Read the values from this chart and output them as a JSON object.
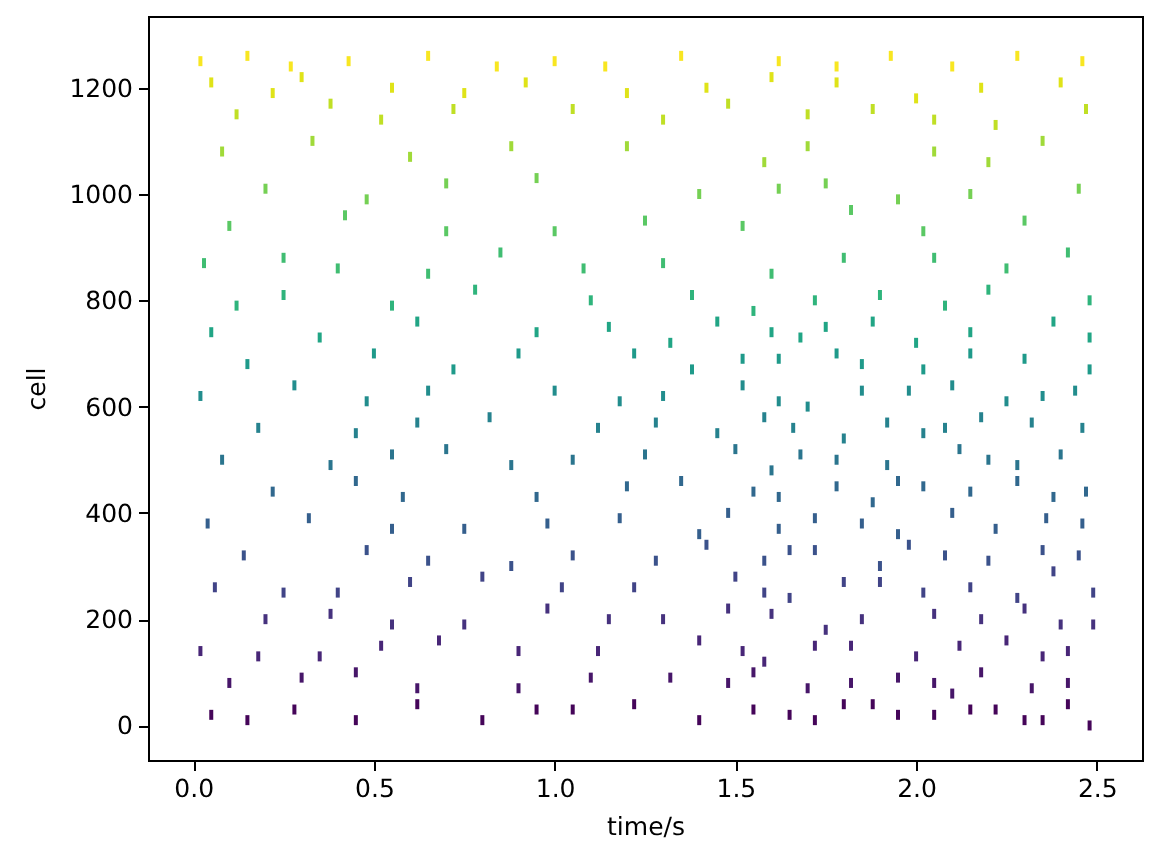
{
  "chart_data": {
    "type": "scatter",
    "xlabel": "time/s",
    "ylabel": "cell",
    "xlim": [
      -0.125,
      2.625
    ],
    "ylim": [
      -65,
      1335
    ],
    "xticks": [
      {
        "value": 0,
        "label": "0.0"
      },
      0.5,
      {
        "value": 1,
        "label": "1.0"
      },
      1.5,
      {
        "value": 2,
        "label": "2.0"
      },
      2.5
    ],
    "yticks": [
      0,
      200,
      400,
      600,
      800,
      1000,
      1200
    ],
    "series": [
      {
        "color": "#f8e621",
        "x": [
          0.02,
          0.15,
          0.27,
          0.43,
          0.65,
          0.84,
          1.0,
          1.14,
          1.35,
          1.62,
          1.78,
          1.93,
          2.1,
          2.28,
          2.46
        ],
        "values": [
          1250,
          1260,
          1240,
          1250,
          1260,
          1240,
          1250,
          1240,
          1260,
          1250,
          1240,
          1260,
          1240,
          1260,
          1250
        ]
      },
      {
        "color": "#dfe318",
        "x": [
          0.05,
          0.22,
          0.3,
          0.55,
          0.75,
          0.92,
          1.2,
          1.42,
          1.6,
          1.78,
          2.0,
          2.18,
          2.4
        ],
        "values": [
          1210,
          1190,
          1220,
          1200,
          1190,
          1210,
          1190,
          1200,
          1220,
          1210,
          1180,
          1200,
          1210
        ]
      },
      {
        "color": "#c0df25",
        "x": [
          0.12,
          0.38,
          0.52,
          0.72,
          1.05,
          1.3,
          1.48,
          1.7,
          1.88,
          2.05,
          2.22,
          2.47
        ],
        "values": [
          1150,
          1170,
          1140,
          1160,
          1160,
          1140,
          1170,
          1150,
          1160,
          1140,
          1130,
          1160
        ]
      },
      {
        "color": "#a0da39",
        "x": [
          0.08,
          0.33,
          0.6,
          0.88,
          1.2,
          1.58,
          1.7,
          2.05,
          2.2,
          2.35
        ],
        "values": [
          1080,
          1100,
          1070,
          1090,
          1090,
          1060,
          1090,
          1080,
          1060,
          1100
        ]
      },
      {
        "color": "#75d054",
        "x": [
          0.2,
          0.48,
          0.7,
          0.95,
          1.4,
          1.62,
          1.75,
          1.95,
          2.15,
          2.45
        ],
        "values": [
          1010,
          990,
          1020,
          1030,
          1000,
          1010,
          1020,
          990,
          1000,
          1010
        ]
      },
      {
        "color": "#5ac864",
        "x": [
          0.1,
          0.42,
          0.7,
          1.0,
          1.25,
          1.52,
          1.82,
          2.02,
          2.3
        ],
        "values": [
          940,
          960,
          930,
          930,
          950,
          940,
          970,
          930,
          950
        ]
      },
      {
        "color": "#40bd72",
        "x": [
          0.03,
          0.25,
          0.4,
          0.65,
          0.85,
          1.08,
          1.3,
          1.6,
          1.8,
          2.05,
          2.25,
          2.42
        ],
        "values": [
          870,
          880,
          860,
          850,
          890,
          860,
          870,
          850,
          880,
          880,
          860,
          890
        ]
      },
      {
        "color": "#2fb47c",
        "x": [
          0.12,
          0.25,
          0.55,
          0.78,
          1.1,
          1.38,
          1.55,
          1.72,
          1.9,
          2.08,
          2.2,
          2.48
        ],
        "values": [
          790,
          810,
          790,
          820,
          800,
          810,
          780,
          800,
          810,
          790,
          820,
          800
        ]
      },
      {
        "color": "#21a585",
        "x": [
          0.05,
          0.35,
          0.62,
          0.95,
          1.15,
          1.32,
          1.45,
          1.6,
          1.68,
          1.75,
          1.88,
          2.0,
          2.15,
          2.38,
          2.48
        ],
        "values": [
          740,
          730,
          760,
          740,
          750,
          720,
          760,
          740,
          730,
          750,
          760,
          720,
          740,
          760,
          730
        ]
      },
      {
        "color": "#1f9a8a",
        "x": [
          0.15,
          0.5,
          0.72,
          0.9,
          1.22,
          1.38,
          1.52,
          1.62,
          1.78,
          1.85,
          2.02,
          2.15,
          2.3,
          2.48
        ],
        "values": [
          680,
          700,
          670,
          700,
          700,
          670,
          690,
          690,
          700,
          680,
          670,
          700,
          690,
          670
        ]
      },
      {
        "color": "#228d8d",
        "x": [
          0.02,
          0.28,
          0.48,
          0.65,
          1.0,
          1.18,
          1.3,
          1.52,
          1.62,
          1.7,
          1.85,
          1.98,
          2.1,
          2.25,
          2.35,
          2.44
        ],
        "values": [
          620,
          640,
          610,
          630,
          630,
          610,
          620,
          640,
          610,
          600,
          630,
          630,
          640,
          610,
          620,
          630
        ]
      },
      {
        "color": "#26828e",
        "x": [
          0.18,
          0.45,
          0.62,
          0.82,
          1.12,
          1.28,
          1.45,
          1.58,
          1.66,
          1.8,
          1.92,
          2.02,
          2.08,
          2.18,
          2.32,
          2.46
        ],
        "values": [
          560,
          550,
          570,
          580,
          560,
          570,
          550,
          580,
          560,
          540,
          570,
          550,
          560,
          580,
          570,
          560
        ]
      },
      {
        "color": "#2b758e",
        "x": [
          0.08,
          0.38,
          0.55,
          0.7,
          0.88,
          1.05,
          1.25,
          1.5,
          1.6,
          1.68,
          1.78,
          1.92,
          2.12,
          2.2,
          2.28,
          2.4
        ],
        "values": [
          500,
          490,
          510,
          520,
          490,
          500,
          510,
          520,
          480,
          510,
          500,
          490,
          520,
          500,
          490,
          510
        ]
      },
      {
        "color": "#31688e",
        "x": [
          0.22,
          0.45,
          0.58,
          0.95,
          1.2,
          1.35,
          1.55,
          1.62,
          1.78,
          1.88,
          1.95,
          2.02,
          2.15,
          2.28,
          2.38,
          2.47
        ],
        "values": [
          440,
          460,
          430,
          430,
          450,
          460,
          440,
          430,
          450,
          420,
          460,
          450,
          440,
          460,
          430,
          440
        ]
      },
      {
        "color": "#355f8d",
        "x": [
          0.04,
          0.32,
          0.55,
          0.75,
          0.98,
          1.18,
          1.4,
          1.48,
          1.62,
          1.72,
          1.85,
          1.95,
          2.1,
          2.22,
          2.36,
          2.46
        ],
        "values": [
          380,
          390,
          370,
          370,
          380,
          390,
          360,
          400,
          370,
          390,
          380,
          360,
          400,
          370,
          390,
          380
        ]
      },
      {
        "color": "#3b528b",
        "x": [
          0.14,
          0.48,
          0.65,
          0.88,
          1.05,
          1.28,
          1.42,
          1.58,
          1.65,
          1.72,
          1.9,
          1.98,
          2.08,
          2.2,
          2.35,
          2.45
        ],
        "values": [
          320,
          330,
          310,
          300,
          320,
          310,
          340,
          310,
          330,
          330,
          300,
          340,
          320,
          310,
          330,
          320
        ]
      },
      {
        "color": "#414487",
        "x": [
          0.06,
          0.25,
          0.4,
          0.6,
          0.8,
          1.02,
          1.22,
          1.5,
          1.58,
          1.65,
          1.8,
          1.9,
          2.02,
          2.15,
          2.28,
          2.38,
          2.49
        ],
        "values": [
          260,
          250,
          250,
          270,
          280,
          260,
          260,
          280,
          250,
          240,
          270,
          270,
          250,
          260,
          240,
          290,
          250
        ]
      },
      {
        "color": "#46327e",
        "x": [
          0.2,
          0.38,
          0.55,
          0.75,
          0.98,
          1.15,
          1.3,
          1.48,
          1.6,
          1.75,
          1.85,
          2.05,
          2.18,
          2.3,
          2.4,
          2.49
        ],
        "values": [
          200,
          210,
          190,
          190,
          220,
          200,
          200,
          220,
          210,
          180,
          200,
          210,
          200,
          220,
          190,
          190
        ]
      },
      {
        "color": "#482677",
        "x": [
          0.02,
          0.18,
          0.35,
          0.52,
          0.68,
          0.9,
          1.12,
          1.4,
          1.52,
          1.58,
          1.72,
          1.82,
          2.0,
          2.12,
          2.25,
          2.35,
          2.42
        ],
        "values": [
          140,
          130,
          130,
          150,
          160,
          140,
          140,
          160,
          140,
          120,
          150,
          150,
          130,
          150,
          160,
          130,
          140
        ]
      },
      {
        "color": "#471669",
        "x": [
          0.1,
          0.3,
          0.45,
          0.62,
          0.9,
          1.1,
          1.32,
          1.48,
          1.55,
          1.7,
          1.82,
          1.95,
          2.05,
          2.1,
          2.18,
          2.32,
          2.42
        ],
        "values": [
          80,
          90,
          100,
          70,
          70,
          90,
          90,
          80,
          100,
          70,
          80,
          90,
          80,
          60,
          100,
          70,
          80
        ]
      },
      {
        "color": "#450559",
        "x": [
          0.05,
          0.15,
          0.28,
          0.45,
          0.62,
          0.8,
          0.95,
          1.05,
          1.22,
          1.4,
          1.55,
          1.65,
          1.72,
          1.8,
          1.88,
          1.95,
          2.05,
          2.15,
          2.22,
          2.3,
          2.35,
          2.42,
          2.48
        ],
        "values": [
          20,
          10,
          30,
          10,
          40,
          10,
          30,
          30,
          40,
          10,
          30,
          20,
          10,
          40,
          40,
          20,
          20,
          30,
          30,
          10,
          10,
          40,
          0
        ]
      }
    ]
  }
}
